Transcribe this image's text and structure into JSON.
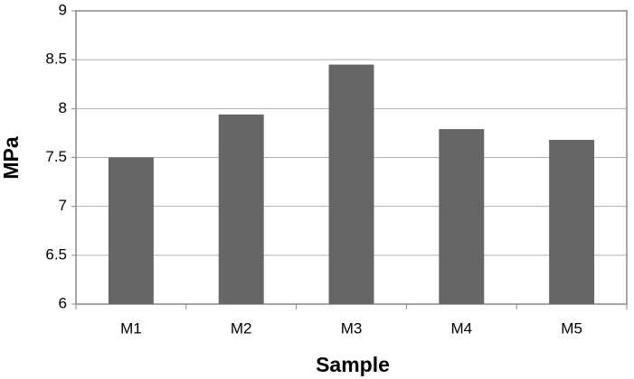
{
  "chart_data": {
    "type": "bar",
    "x_label": "Sample",
    "y_label": "MPa",
    "categories": [
      "M1",
      "M2",
      "M3",
      "M4",
      "M5"
    ],
    "values": [
      7.5,
      7.94,
      8.45,
      7.79,
      7.68
    ],
    "color": "#666666",
    "ylim": [
      6,
      9
    ],
    "yticks": [
      6,
      6.5,
      7,
      7.5,
      8,
      8.5,
      9
    ],
    "grid": true
  }
}
